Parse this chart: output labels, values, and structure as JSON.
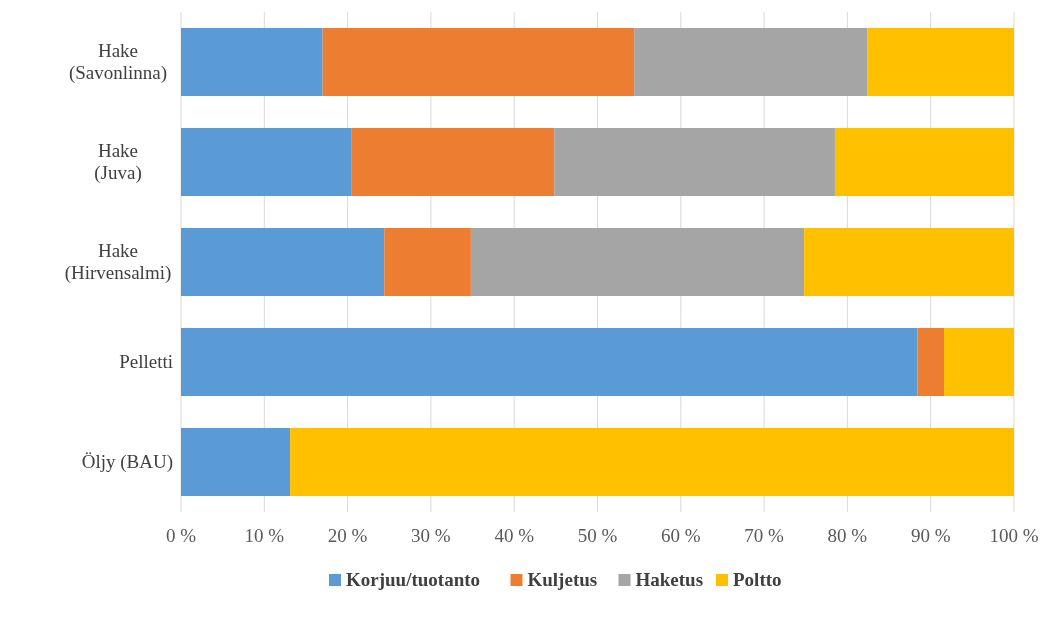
{
  "chart_data": {
    "type": "bar",
    "orientation": "horizontal",
    "stacked": true,
    "categories": [
      "Hake\n(Savonlinna)",
      "Hake\n(Juva)",
      "Hake\n(Hirvensalmi)",
      "Pelletti",
      "Öljy (BAU)"
    ],
    "series": [
      {
        "name": "Korjuu/tuotanto",
        "color": "#5b9bd5",
        "values": [
          17,
          20.5,
          24.4,
          88.4,
          13.1
        ]
      },
      {
        "name": "Kuljetus",
        "color": "#ed7d31",
        "values": [
          37.4,
          24.3,
          10.4,
          3.2,
          0
        ]
      },
      {
        "name": "Haketus",
        "color": "#a5a5a5",
        "values": [
          28,
          33.7,
          40,
          0,
          0
        ]
      },
      {
        "name": "Poltto",
        "color": "#ffc000",
        "values": [
          17.6,
          21.5,
          25.2,
          8.4,
          86.9
        ]
      }
    ],
    "xlim": [
      0,
      100
    ],
    "xticks": [
      {
        "value": 0,
        "label": "0 %"
      },
      {
        "value": 10,
        "label": "10 %"
      },
      {
        "value": 20,
        "label": "20 %"
      },
      {
        "value": 30,
        "label": "30 %"
      },
      {
        "value": 40,
        "label": "40 %"
      },
      {
        "value": 50,
        "label": "50 %"
      },
      {
        "value": 60,
        "label": "60 %"
      },
      {
        "value": 70,
        "label": "70 %"
      },
      {
        "value": 80,
        "label": "80 %"
      },
      {
        "value": 90,
        "label": "90 %"
      },
      {
        "value": 100,
        "label": "100 %"
      }
    ],
    "grid": "x",
    "legend": "bottom"
  }
}
